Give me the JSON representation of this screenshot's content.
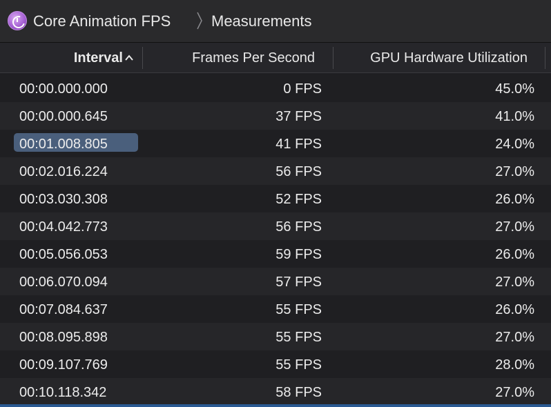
{
  "breadcrumb": {
    "app_title": "Core Animation FPS",
    "section": "Measurements",
    "app_icon": "core-animation-fps-icon"
  },
  "table": {
    "columns": {
      "interval": "Interval",
      "fps": "Frames Per Second",
      "gpu": "GPU Hardware Utilization"
    },
    "sort": {
      "column": "interval",
      "direction": "ascending"
    },
    "selected_index": 2,
    "rows": [
      {
        "interval": "00:00.000.000",
        "fps": "0 FPS",
        "gpu": "45.0%"
      },
      {
        "interval": "00:00.000.645",
        "fps": "37 FPS",
        "gpu": "41.0%"
      },
      {
        "interval": "00:01.008.805",
        "fps": "41 FPS",
        "gpu": "24.0%"
      },
      {
        "interval": "00:02.016.224",
        "fps": "56 FPS",
        "gpu": "27.0%"
      },
      {
        "interval": "00:03.030.308",
        "fps": "52 FPS",
        "gpu": "26.0%"
      },
      {
        "interval": "00:04.042.773",
        "fps": "56 FPS",
        "gpu": "27.0%"
      },
      {
        "interval": "00:05.056.053",
        "fps": "59 FPS",
        "gpu": "26.0%"
      },
      {
        "interval": "00:06.070.094",
        "fps": "57 FPS",
        "gpu": "27.0%"
      },
      {
        "interval": "00:07.084.637",
        "fps": "55 FPS",
        "gpu": "26.0%"
      },
      {
        "interval": "00:08.095.898",
        "fps": "55 FPS",
        "gpu": "27.0%"
      },
      {
        "interval": "00:09.107.769",
        "fps": "55 FPS",
        "gpu": "28.0%"
      },
      {
        "interval": "00:10.118.342",
        "fps": "58 FPS",
        "gpu": "27.0%"
      }
    ]
  },
  "colors": {
    "background": "#1f1f22",
    "alt_row": "#262629",
    "selection": "#4a5f7c",
    "accent": "#2b5a93"
  }
}
